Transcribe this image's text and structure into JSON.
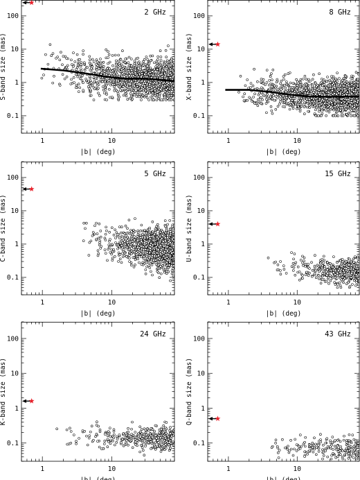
{
  "colors": {
    "marker": "#e8202a",
    "arrow": "#000000",
    "points": "#000000"
  },
  "chart_data": [
    {
      "type": "scatter",
      "band_label": "2 GHz",
      "xlabel": "|b| (deg)",
      "ylabel": "S-band size (mas)",
      "xscale": "log",
      "yscale": "log",
      "xlim": [
        0.5,
        80
      ],
      "ylim": [
        0.03,
        300
      ],
      "xticks": [
        {
          "v": 1,
          "label": "1"
        },
        {
          "v": 10,
          "label": "10"
        }
      ],
      "yticks": [
        {
          "v": 0.1,
          "label": "0.1"
        },
        {
          "v": 1,
          "label": "1"
        },
        {
          "v": 10,
          "label": "10"
        },
        {
          "v": 100,
          "label": "100"
        }
      ],
      "marker": {
        "x": 0.7,
        "y": 250
      },
      "trend": [
        [
          0.95,
          2.6
        ],
        [
          2,
          2.3
        ],
        [
          4,
          1.9
        ],
        [
          8,
          1.5
        ],
        [
          15,
          1.3
        ],
        [
          30,
          1.3
        ],
        [
          50,
          1.2
        ],
        [
          80,
          1.1
        ]
      ],
      "cloud": {
        "seed": 11,
        "n": 1300,
        "xmin": 0.6,
        "xmax": 80,
        "xpow": 0.35,
        "trend": [
          [
            0.6,
            2.8
          ],
          [
            1,
            2.6
          ],
          [
            2,
            2.3
          ],
          [
            4,
            1.9
          ],
          [
            8,
            1.5
          ],
          [
            15,
            1.3
          ],
          [
            30,
            1.3
          ],
          [
            80,
            1.1
          ]
        ],
        "spread": 0.55,
        "ymin": 0.3,
        "ymax": 30
      }
    },
    {
      "type": "scatter",
      "band_label": "8 GHz",
      "xlabel": "|b| (deg)",
      "ylabel": "X-band size (mas)",
      "xscale": "log",
      "yscale": "log",
      "xlim": [
        0.5,
        80
      ],
      "ylim": [
        0.03,
        300
      ],
      "xticks": [
        {
          "v": 1,
          "label": "1"
        },
        {
          "v": 10,
          "label": "10"
        }
      ],
      "yticks": [
        {
          "v": 0.1,
          "label": "0.1"
        },
        {
          "v": 1,
          "label": "1"
        },
        {
          "v": 10,
          "label": "10"
        },
        {
          "v": 100,
          "label": "100"
        }
      ],
      "marker": {
        "x": 0.7,
        "y": 14
      },
      "trend": [
        [
          0.9,
          0.6
        ],
        [
          2,
          0.6
        ],
        [
          4,
          0.52
        ],
        [
          8,
          0.43
        ],
        [
          15,
          0.38
        ],
        [
          30,
          0.37
        ],
        [
          80,
          0.38
        ]
      ],
      "cloud": {
        "seed": 23,
        "n": 1500,
        "xmin": 0.6,
        "xmax": 80,
        "xpow": 0.3,
        "trend": [
          [
            0.6,
            0.65
          ],
          [
            2,
            0.6
          ],
          [
            4,
            0.52
          ],
          [
            8,
            0.43
          ],
          [
            15,
            0.38
          ],
          [
            30,
            0.37
          ],
          [
            80,
            0.38
          ]
        ],
        "spread": 0.45,
        "ymin": 0.1,
        "ymax": 8
      }
    },
    {
      "type": "scatter",
      "band_label": "5 GHz",
      "xlabel": "|b| (deg)",
      "ylabel": "C-band size (mas)",
      "xscale": "log",
      "yscale": "log",
      "xlim": [
        0.5,
        80
      ],
      "ylim": [
        0.03,
        300
      ],
      "xticks": [
        {
          "v": 1,
          "label": "1"
        },
        {
          "v": 10,
          "label": "10"
        }
      ],
      "yticks": [
        {
          "v": 0.1,
          "label": "0.1"
        },
        {
          "v": 1,
          "label": "1"
        },
        {
          "v": 10,
          "label": "10"
        },
        {
          "v": 100,
          "label": "100"
        }
      ],
      "marker": {
        "x": 0.7,
        "y": 45
      },
      "trend": [],
      "cloud": {
        "seed": 37,
        "n": 1400,
        "xmin": 0.9,
        "xmax": 80,
        "xpow": 0.18,
        "trend": [
          [
            0.9,
            10
          ],
          [
            2,
            4
          ],
          [
            5,
            1.6
          ],
          [
            10,
            1.0
          ],
          [
            30,
            0.8
          ],
          [
            80,
            0.7
          ]
        ],
        "spread": 0.5,
        "ymin": 0.08,
        "ymax": 22
      }
    },
    {
      "type": "scatter",
      "band_label": "15 GHz",
      "xlabel": "|b| (deg)",
      "ylabel": "U-band size (mas)",
      "xscale": "log",
      "yscale": "log",
      "xlim": [
        0.5,
        80
      ],
      "ylim": [
        0.03,
        300
      ],
      "xticks": [
        {
          "v": 1,
          "label": "1"
        },
        {
          "v": 10,
          "label": "10"
        }
      ],
      "yticks": [
        {
          "v": 0.1,
          "label": "0.1"
        },
        {
          "v": 1,
          "label": "1"
        },
        {
          "v": 10,
          "label": "10"
        },
        {
          "v": 100,
          "label": "100"
        }
      ],
      "marker": {
        "x": 0.7,
        "y": 4
      },
      "trend": [],
      "cloud": {
        "seed": 53,
        "n": 480,
        "xmin": 1.3,
        "xmax": 80,
        "xpow": 0.2,
        "trend": [
          [
            1.3,
            0.25
          ],
          [
            5,
            0.22
          ],
          [
            15,
            0.18
          ],
          [
            40,
            0.15
          ],
          [
            80,
            0.15
          ]
        ],
        "spread": 0.33,
        "ymin": 0.05,
        "ymax": 1.5
      }
    },
    {
      "type": "scatter",
      "band_label": "24 GHz",
      "xlabel": "|b| (deg)",
      "ylabel": "K-band size (mas)",
      "xscale": "log",
      "yscale": "log",
      "xlim": [
        0.5,
        80
      ],
      "ylim": [
        0.03,
        300
      ],
      "xticks": [
        {
          "v": 1,
          "label": "1"
        },
        {
          "v": 10,
          "label": "10"
        }
      ],
      "yticks": [
        {
          "v": 0.1,
          "label": "0.1"
        },
        {
          "v": 1,
          "label": "1"
        },
        {
          "v": 10,
          "label": "10"
        },
        {
          "v": 100,
          "label": "100"
        }
      ],
      "marker": {
        "x": 0.7,
        "y": 1.6
      },
      "trend": [],
      "cloud": {
        "seed": 71,
        "n": 380,
        "xmin": 0.85,
        "xmax": 80,
        "xpow": 0.3,
        "trend": [
          [
            0.85,
            0.17
          ],
          [
            5,
            0.16
          ],
          [
            20,
            0.14
          ],
          [
            80,
            0.13
          ]
        ],
        "spread": 0.3,
        "ymin": 0.035,
        "ymax": 0.8
      }
    },
    {
      "type": "scatter",
      "band_label": "43 GHz",
      "xlabel": "|b| (deg)",
      "ylabel": "Q-band size (mas)",
      "xscale": "log",
      "yscale": "log",
      "xlim": [
        0.5,
        80
      ],
      "ylim": [
        0.03,
        300
      ],
      "xticks": [
        {
          "v": 1,
          "label": "1"
        },
        {
          "v": 10,
          "label": "10"
        }
      ],
      "yticks": [
        {
          "v": 0.1,
          "label": "0.1"
        },
        {
          "v": 1,
          "label": "1"
        },
        {
          "v": 10,
          "label": "10"
        },
        {
          "v": 100,
          "label": "100"
        }
      ],
      "marker": {
        "x": 0.7,
        "y": 0.5
      },
      "trend": [],
      "cloud": {
        "seed": 89,
        "n": 200,
        "xmin": 3.5,
        "xmax": 80,
        "xpow": 0.45,
        "trend": [
          [
            3.5,
            0.08
          ],
          [
            10,
            0.075
          ],
          [
            30,
            0.07
          ],
          [
            80,
            0.07
          ]
        ],
        "spread": 0.28,
        "ymin": 0.035,
        "ymax": 0.2
      }
    }
  ]
}
